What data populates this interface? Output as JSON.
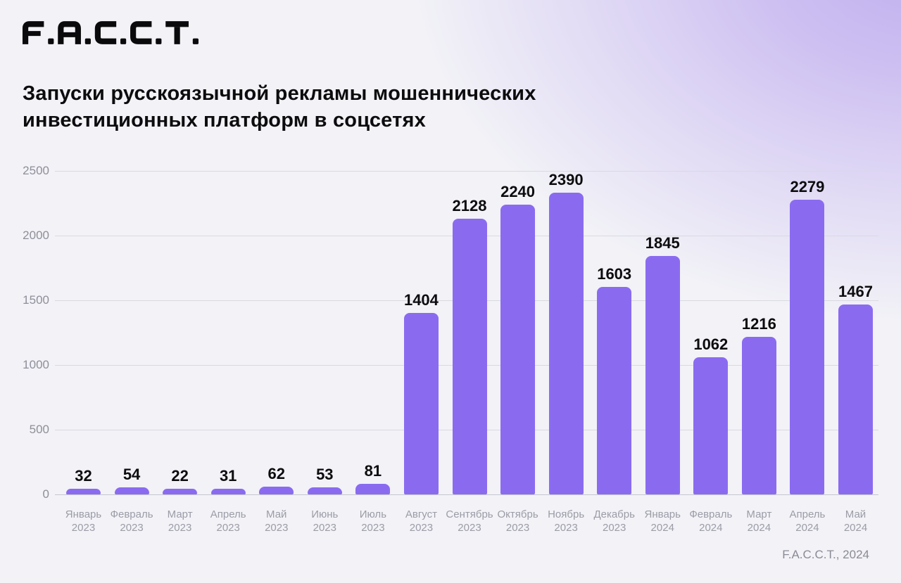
{
  "logo": {
    "text": "F.A.C.C.T."
  },
  "header": {
    "title_line1": "Запуски русскоязычной рекламы мошеннических",
    "title_line2": "инвестиционных платформ в соцсетях"
  },
  "footer": {
    "credit": "F.A.C.C.T., 2024"
  },
  "colors": {
    "bar": "#8a6bf0",
    "background_base": "#f2f2f7",
    "background_accent": "#bfaef0",
    "value_label": "#0c0c0e",
    "axis_text": "#8e8f99",
    "gridline": "#d9d9e1"
  },
  "chart_data": {
    "type": "bar",
    "title": "Запуски русскоязычной рекламы мошеннических инвестиционных платформ в соцсетях",
    "categories": [
      {
        "month": "Январь",
        "year": "2023"
      },
      {
        "month": "Февраль",
        "year": "2023"
      },
      {
        "month": "Март",
        "year": "2023"
      },
      {
        "month": "Апрель",
        "year": "2023"
      },
      {
        "month": "Май",
        "year": "2023"
      },
      {
        "month": "Июнь",
        "year": "2023"
      },
      {
        "month": "Июль",
        "year": "2023"
      },
      {
        "month": "Август",
        "year": "2023"
      },
      {
        "month": "Сентябрь",
        "year": "2023"
      },
      {
        "month": "Октябрь",
        "year": "2023"
      },
      {
        "month": "Ноябрь",
        "year": "2023"
      },
      {
        "month": "Декабрь",
        "year": "2023"
      },
      {
        "month": "Январь",
        "year": "2024"
      },
      {
        "month": "Февраль",
        "year": "2024"
      },
      {
        "month": "Март",
        "year": "2024"
      },
      {
        "month": "Апрель",
        "year": "2024"
      },
      {
        "month": "Май",
        "year": "2024"
      }
    ],
    "values": [
      32,
      54,
      22,
      31,
      62,
      53,
      81,
      1404,
      2128,
      2240,
      2390,
      1603,
      1845,
      1062,
      1216,
      2279,
      1467
    ],
    "xlabel": "",
    "ylabel": "",
    "ylim": [
      0,
      2500
    ],
    "yticks": [
      2500,
      2000,
      1500,
      1000,
      500,
      0
    ],
    "grid": true,
    "legend_position": "none",
    "source": "F.A.C.C.T., 2024"
  }
}
